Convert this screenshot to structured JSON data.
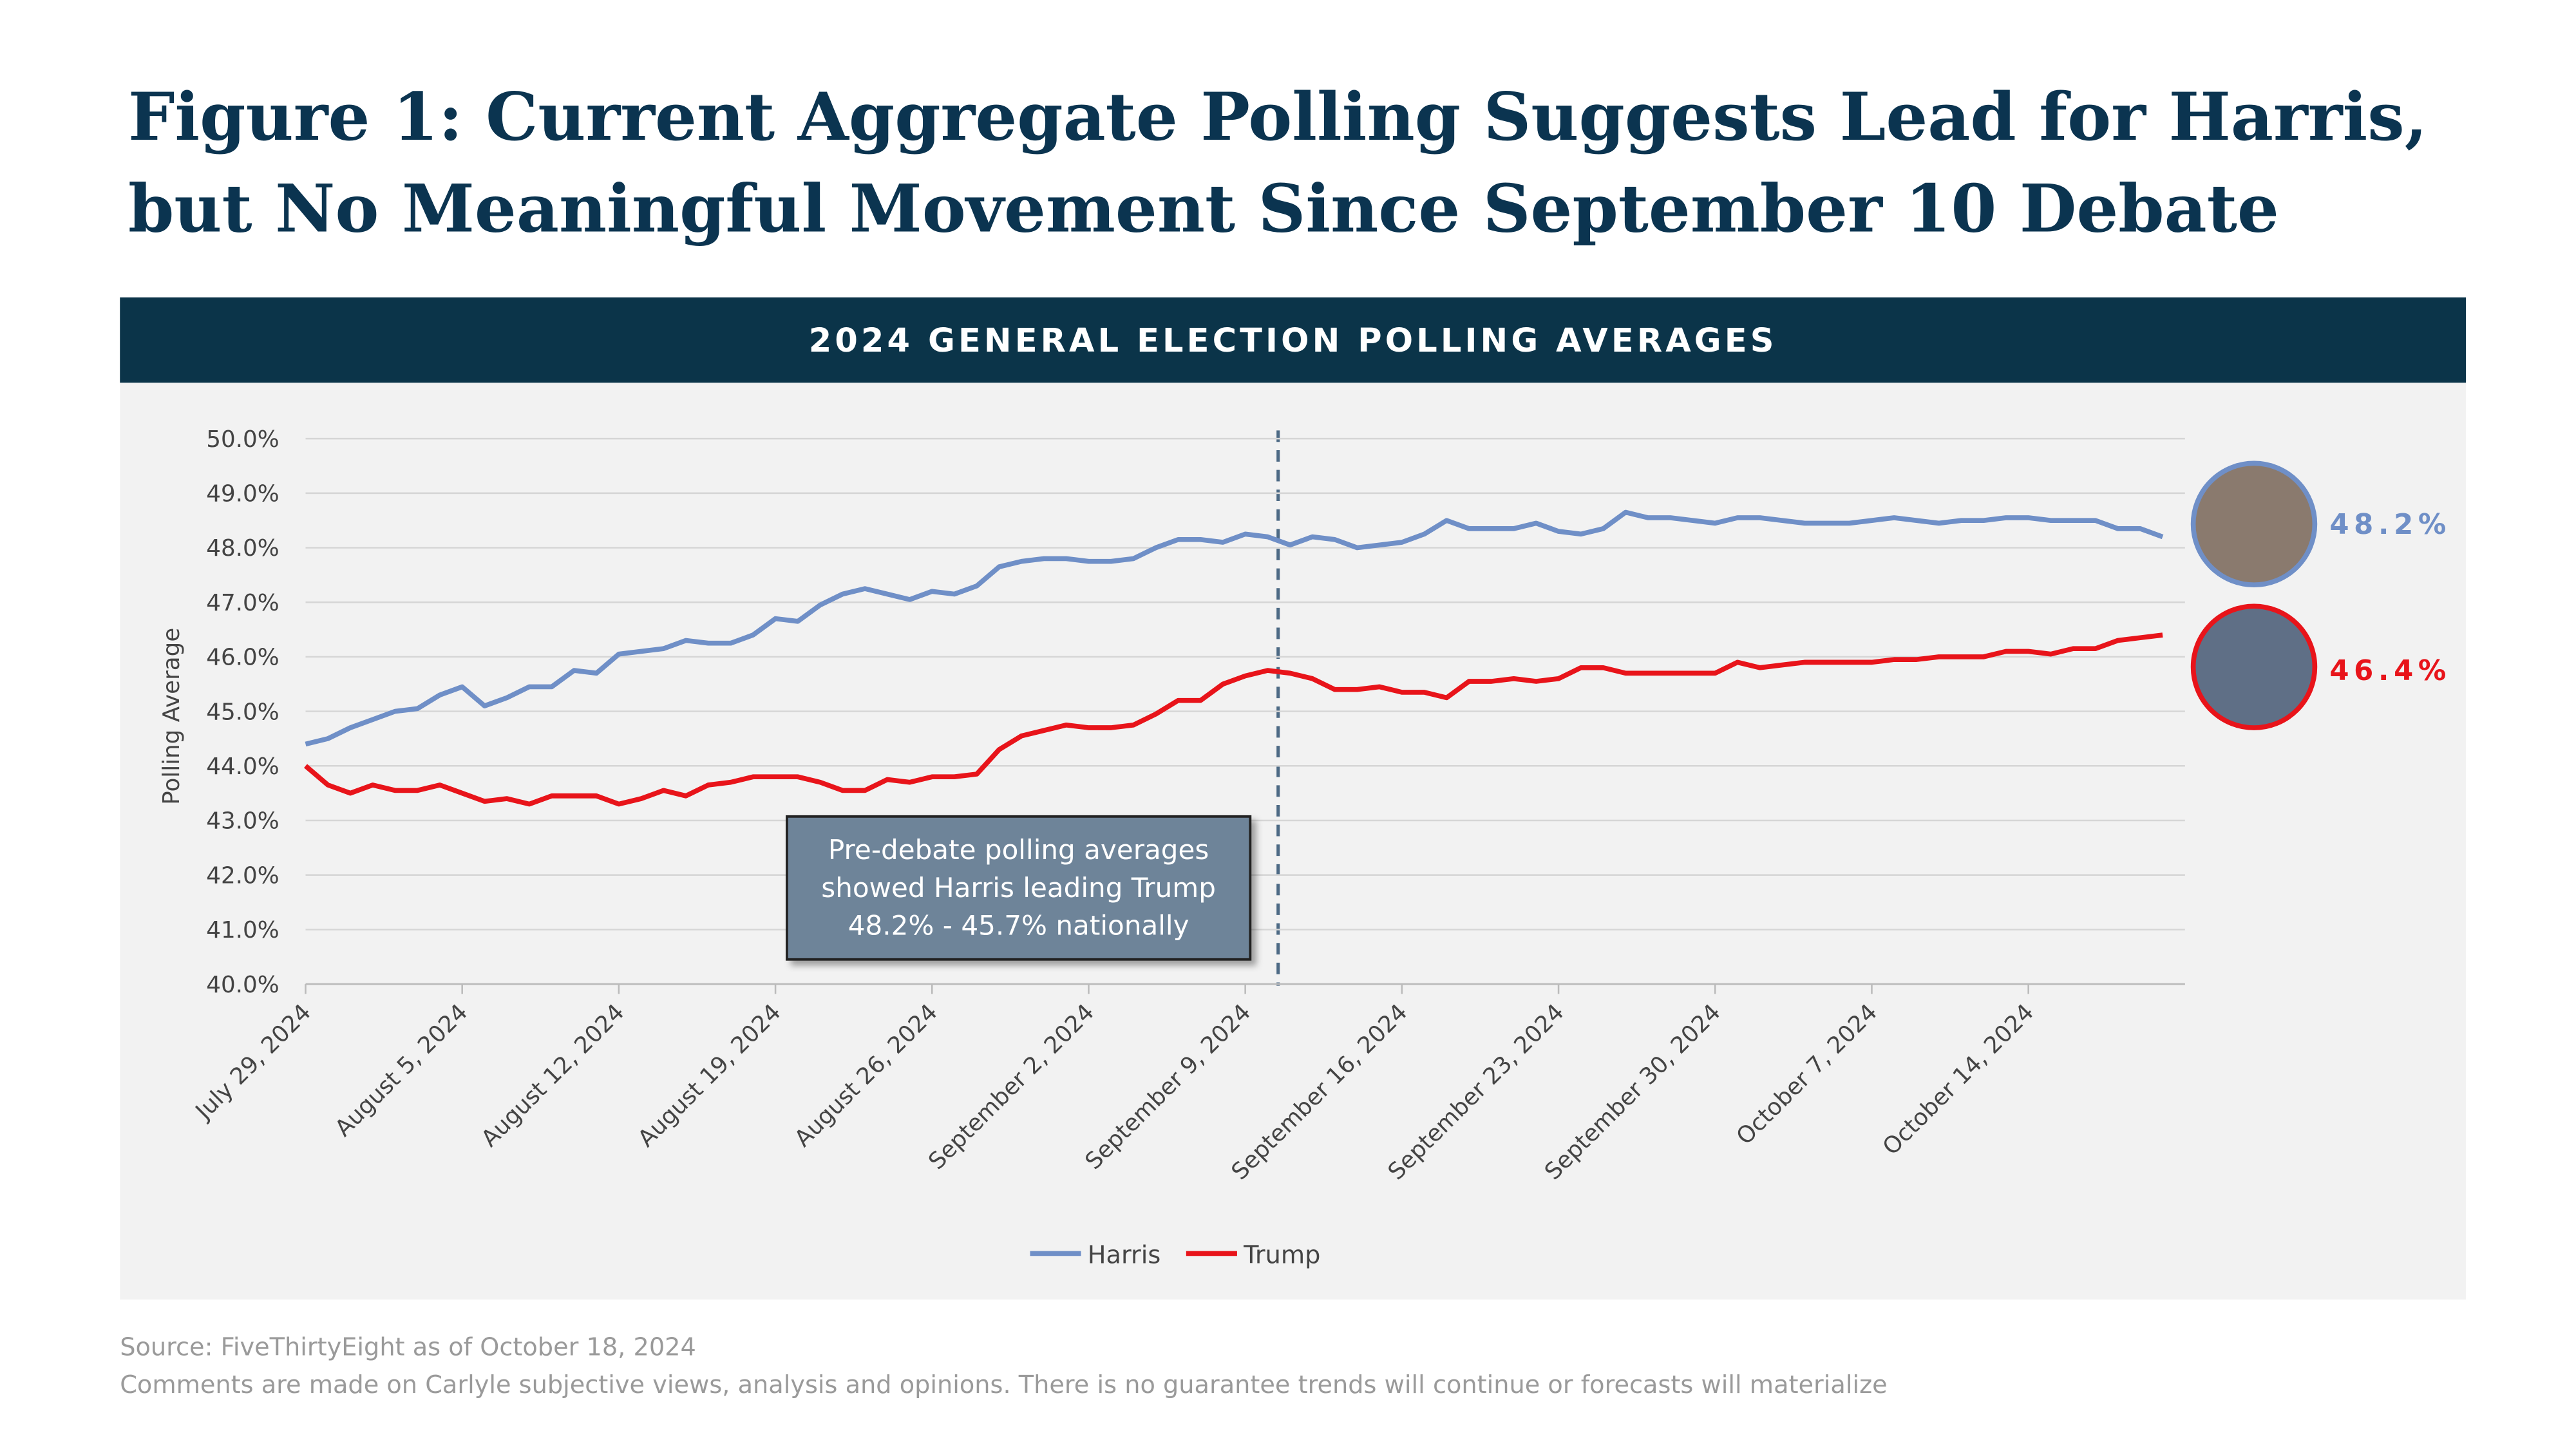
{
  "chart_data": {
    "type": "line",
    "title": [
      "Figure 1: Current Aggregate Polling Suggests Lead for Harris,",
      "but No Meaningful Movement Since September 10 Debate"
    ],
    "subtitle": "2024 GENERAL ELECTION POLLING AVERAGES",
    "y_label": "Polling Average",
    "categories": [
      "July 29, 2024",
      null,
      null,
      null,
      null,
      null,
      null,
      "August 5, 2024",
      null,
      null,
      null,
      null,
      null,
      null,
      "August 12, 2024",
      null,
      null,
      null,
      null,
      null,
      null,
      "August 19, 2024",
      null,
      null,
      null,
      null,
      null,
      null,
      "August 26, 2024",
      null,
      null,
      null,
      null,
      null,
      null,
      "September 2, 2024",
      null,
      null,
      null,
      null,
      null,
      null,
      "September 9, 2024",
      null,
      null,
      null,
      null,
      null,
      null,
      "September 16, 2024",
      null,
      null,
      null,
      null,
      null,
      null,
      "September 23, 2024",
      null,
      null,
      null,
      null,
      null,
      null,
      "September 30, 2024",
      null,
      null,
      null,
      null,
      null,
      null,
      "October 7, 2024",
      null,
      null,
      null,
      null,
      null,
      null,
      "October 14, 2024",
      null,
      null,
      null,
      null,
      null,
      null
    ],
    "series": [
      {
        "name": "Harris",
        "color": "#6f8fc7",
        "values": [
          44.4,
          44.5,
          44.7,
          44.85,
          45.0,
          45.05,
          45.3,
          45.45,
          45.1,
          45.25,
          45.45,
          45.45,
          45.75,
          45.7,
          46.05,
          46.1,
          46.15,
          46.3,
          46.25,
          46.25,
          46.4,
          46.7,
          46.65,
          46.95,
          47.15,
          47.25,
          47.15,
          47.05,
          47.2,
          47.15,
          47.3,
          47.65,
          47.75,
          47.8,
          47.8,
          47.75,
          47.75,
          47.8,
          48.0,
          48.15,
          48.15,
          48.1,
          48.25,
          48.2,
          48.05,
          48.2,
          48.15,
          48.0,
          48.05,
          48.1,
          48.25,
          48.5,
          48.35,
          48.35,
          48.35,
          48.45,
          48.3,
          48.25,
          48.35,
          48.65,
          48.55,
          48.55,
          48.5,
          48.45,
          48.55,
          48.55,
          48.5,
          48.45,
          48.45,
          48.45,
          48.5,
          48.55,
          48.5,
          48.45,
          48.5,
          48.5,
          48.55,
          48.55,
          48.5,
          48.5,
          48.5,
          48.35,
          48.35,
          48.2
        ],
        "value_labels": [
          null,
          null,
          null,
          null,
          null,
          null,
          null,
          null,
          null,
          null,
          null,
          null,
          null,
          null,
          null,
          null,
          null,
          null,
          null,
          null,
          null,
          null,
          null,
          null,
          null,
          null,
          null,
          null,
          null,
          null,
          null,
          null,
          null,
          null,
          null,
          null,
          null,
          null,
          null,
          null,
          null,
          null,
          null,
          null,
          null,
          null,
          null,
          null,
          null,
          null,
          null,
          null,
          null,
          null,
          null,
          null,
          null,
          null,
          null,
          null,
          null,
          null,
          null,
          null,
          null,
          null,
          null,
          null,
          null,
          null,
          null,
          null,
          null,
          null,
          null,
          null,
          null,
          null,
          null,
          null,
          null,
          null,
          null,
          "48.2%"
        ]
      },
      {
        "name": "Trump",
        "color": "#e8141a",
        "values": [
          44.0,
          43.65,
          43.5,
          43.65,
          43.55,
          43.55,
          43.65,
          43.5,
          43.35,
          43.4,
          43.3,
          43.45,
          43.45,
          43.45,
          43.3,
          43.4,
          43.55,
          43.45,
          43.65,
          43.7,
          43.8,
          43.8,
          43.8,
          43.7,
          43.55,
          43.55,
          43.75,
          43.7,
          43.8,
          43.8,
          43.85,
          44.3,
          44.55,
          44.65,
          44.75,
          44.7,
          44.7,
          44.75,
          44.95,
          45.2,
          45.2,
          45.5,
          45.65,
          45.75,
          45.7,
          45.6,
          45.4,
          45.4,
          45.45,
          45.35,
          45.35,
          45.25,
          45.55,
          45.55,
          45.6,
          45.55,
          45.6,
          45.8,
          45.8,
          45.7,
          45.7,
          45.7,
          45.7,
          45.7,
          45.9,
          45.8,
          45.85,
          45.9,
          45.9,
          45.9,
          45.9,
          45.95,
          45.95,
          46.0,
          46.0,
          46.0,
          46.1,
          46.1,
          46.05,
          46.15,
          46.15,
          46.3,
          46.35,
          46.4
        ],
        "value_labels": [
          null,
          null,
          null,
          null,
          null,
          null,
          null,
          null,
          null,
          null,
          null,
          null,
          null,
          null,
          null,
          null,
          null,
          null,
          null,
          null,
          null,
          null,
          null,
          null,
          null,
          null,
          null,
          null,
          null,
          null,
          null,
          null,
          null,
          null,
          null,
          null,
          null,
          null,
          null,
          null,
          null,
          null,
          null,
          null,
          null,
          null,
          null,
          null,
          null,
          null,
          null,
          null,
          null,
          null,
          null,
          null,
          null,
          null,
          null,
          null,
          null,
          null,
          null,
          null,
          null,
          null,
          null,
          null,
          null,
          null,
          null,
          null,
          null,
          null,
          null,
          null,
          null,
          null,
          null,
          null,
          null,
          null,
          null,
          "46.4%"
        ]
      }
    ],
    "ylim": [
      40,
      50
    ],
    "yticks": [
      {
        "value": 40,
        "label": "40.0%"
      },
      {
        "value": 41,
        "label": "41.0%"
      },
      {
        "value": 42,
        "label": "42.0%"
      },
      {
        "value": 43,
        "label": "43.0%"
      },
      {
        "value": 44,
        "label": "44.0%"
      },
      {
        "value": 45,
        "label": "45.0%"
      },
      {
        "value": 46,
        "label": "46.0%"
      },
      {
        "value": 47,
        "label": "47.0%"
      },
      {
        "value": 48,
        "label": "48.0%"
      },
      {
        "value": 49,
        "label": "49.0%"
      },
      {
        "value": 50,
        "label": "50.0%"
      }
    ],
    "grid": true,
    "legend": "bottom",
    "annotation": [
      "Pre-debate polling averages",
      "showed Harris leading Trump",
      "48.2% - 45.7% nationally"
    ],
    "source": "Source: FiveThirtyEight as of October 18, 2024",
    "disclaimer": "Comments are made on Carlyle subjective views, analysis and opinions. There is no guarantee trends will continue or forecasts will materialize"
  }
}
